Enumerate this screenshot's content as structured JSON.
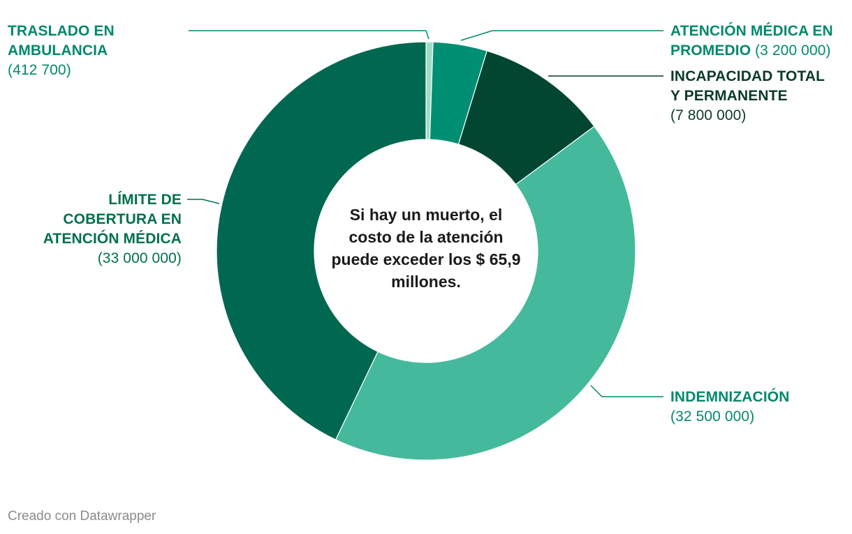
{
  "chart_data": {
    "type": "pie",
    "variant": "donut",
    "center_text": "Si hay un muerto, el costo de la atención puede exceder los $ 65,9 millones.",
    "slices": [
      {
        "key": "traslado",
        "name": "TRASLADO EN AMBULANCIA",
        "value_label": "(412 700)",
        "value": 412700,
        "color": "#9fdcc6",
        "label_color": "#00896c"
      },
      {
        "key": "atencion",
        "name": "ATENCIÓN MÉDICA EN PROMEDIO",
        "value_label": "(3 200 000)",
        "value": 3200000,
        "color": "#008f72",
        "label_color": "#00896c"
      },
      {
        "key": "incapacidad",
        "name": "INCAPACIDAD TOTAL Y PERMANENTE",
        "value_label": "(7 800 000)",
        "value": 7800000,
        "color": "#024632",
        "label_color": "#0c3a2c"
      },
      {
        "key": "indemnizacion",
        "name": "INDEMNIZACIÓN",
        "value_label": "(32 500 000)",
        "value": 32500000,
        "color": "#45b99c",
        "label_color": "#00896c"
      },
      {
        "key": "limite",
        "name": "LÍMITE DE COBERTURA EN ATENCIÓN MÉDICA",
        "value_label": "(33 000 000)",
        "value": 33000000,
        "color": "#006850",
        "label_color": "#00704f"
      }
    ],
    "legend": "none"
  },
  "labels": {
    "traslado": {
      "line1": "TRASLADO EN",
      "line2": "AMBULANCIA",
      "value": "(412 700)"
    },
    "atencion": {
      "line1": "ATENCIÓN MÉDICA EN",
      "line2": "PROMEDIO",
      "value": "(3 200 000)"
    },
    "incapacidad": {
      "line1": "INCAPACIDAD TOTAL",
      "line2": "Y PERMANENTE",
      "value": "(7 800 000)"
    },
    "indemnizacion": {
      "line1": "INDEMNIZACIÓN",
      "value": "(32 500 000)"
    },
    "limite": {
      "line1": "LÍMITE DE",
      "line2": "COBERTURA EN",
      "line3": "ATENCIÓN MÉDICA",
      "value": "(33 000 000)"
    }
  },
  "footer": "Creado con Datawrapper"
}
